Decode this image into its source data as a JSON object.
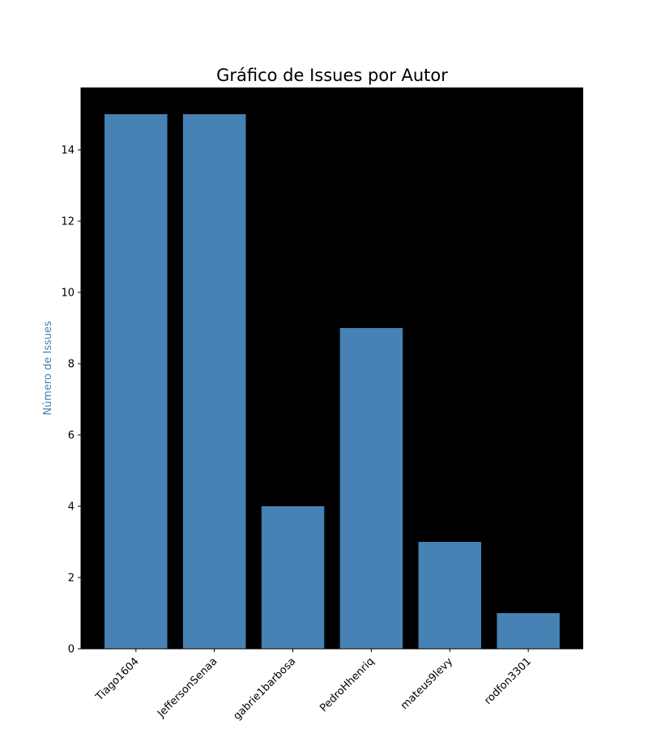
{
  "chart_data": {
    "type": "bar",
    "title": "Gráfico de Issues por Autor",
    "xlabel": "",
    "ylabel": "Número de Issues",
    "categories": [
      "Tiago1604",
      "JeffersonSenaa",
      "gabrie1barbosa",
      "PedroHhenriq",
      "mateus9levy",
      "rodfon3301"
    ],
    "values": [
      15,
      15,
      4,
      9,
      3,
      1
    ],
    "ylim": [
      0,
      15.75
    ],
    "yticks": [
      0,
      2,
      4,
      6,
      8,
      10,
      12,
      14
    ],
    "grid": false,
    "legend": "none",
    "colors": {
      "bar": "#4682b4",
      "plot_background": "#000000",
      "ylabel": "#4682b4",
      "text": "#000000"
    }
  }
}
